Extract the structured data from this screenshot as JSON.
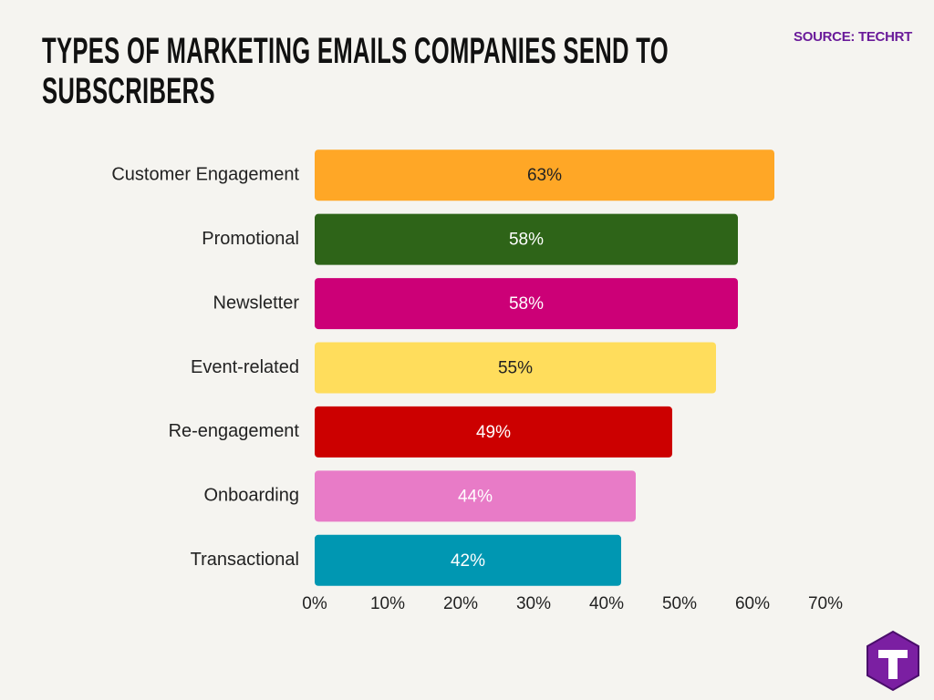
{
  "chart_data": {
    "type": "bar",
    "orientation": "horizontal",
    "title": "TYPES OF MARKETING EMAILS COMPANIES SEND TO SUBSCRIBERS",
    "source": "SOURCE: TECHRT",
    "categories": [
      "Customer Engagement",
      "Promotional",
      "Newsletter",
      "Event-related",
      "Re-engagement",
      "Onboarding",
      "Transactional"
    ],
    "values": [
      63,
      58,
      58,
      55,
      49,
      44,
      42
    ],
    "value_labels": [
      "63%",
      "58%",
      "58%",
      "55%",
      "49%",
      "44%",
      "42%"
    ],
    "colors": [
      "#ffa726",
      "#2e6418",
      "#cc0077",
      "#ffdd5c",
      "#cc0000",
      "#e87bc7",
      "#0097b2"
    ],
    "xlim": [
      0,
      70
    ],
    "xticks": [
      {
        "value": 0,
        "label": "0%"
      },
      {
        "value": 10,
        "label": "10%"
      },
      {
        "value": 20,
        "label": "20%"
      },
      {
        "value": 30,
        "label": "30%"
      },
      {
        "value": 40,
        "label": "40%"
      },
      {
        "value": 50,
        "label": "50%"
      },
      {
        "value": 60,
        "label": "60%"
      },
      {
        "value": 70,
        "label": "70%"
      }
    ],
    "grid": false
  }
}
